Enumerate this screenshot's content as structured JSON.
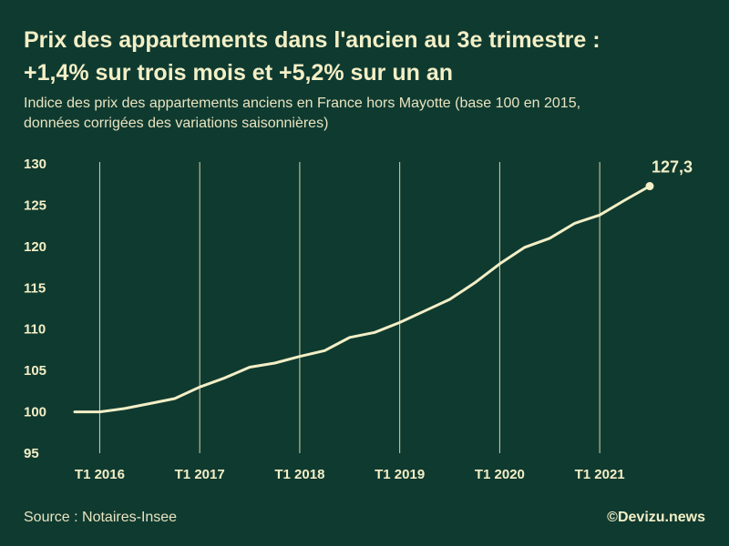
{
  "title_line1": "Prix des appartements dans l'ancien au 3e trimestre :",
  "title_line2": "+1,4% sur trois mois et +5,2% sur un an",
  "subtitle_line1": "Indice des prix des appartements anciens en France hors Mayotte (base 100 en 2015,",
  "subtitle_line2": "données corrigées des variations saisonnières)",
  "source": "Source : Notaires-Insee",
  "credit": "©Devizu.news",
  "colors": {
    "background": "#0f3a30",
    "line": "#f3efc6",
    "grid": "#d9d4ad",
    "text": "#f3efc6"
  },
  "chart_data": {
    "type": "line",
    "title": "Prix des appartements dans l'ancien au 3e trimestre : +1,4% sur trois mois et +5,2% sur un an",
    "xlabel": "",
    "ylabel": "",
    "ylim": [
      95,
      130
    ],
    "yticks": [
      "95",
      "100",
      "105",
      "110",
      "115",
      "120",
      "125",
      "130"
    ],
    "ytick_values": [
      95,
      100,
      105,
      110,
      115,
      120,
      125,
      130
    ],
    "xtick_labels": [
      "T1 2016",
      "T1 2017",
      "T1 2018",
      "T1 2019",
      "T1 2020",
      "T1 2021"
    ],
    "xtick_quarters": [
      "2016-T1",
      "2017-T1",
      "2018-T1",
      "2019-T1",
      "2020-T1",
      "2021-T1"
    ],
    "grid": "vertical",
    "x": [
      "2015-T4",
      "2016-T1",
      "2016-T2",
      "2016-T3",
      "2016-T4",
      "2017-T1",
      "2017-T2",
      "2017-T3",
      "2017-T4",
      "2018-T1",
      "2018-T2",
      "2018-T3",
      "2018-T4",
      "2019-T1",
      "2019-T2",
      "2019-T3",
      "2019-T4",
      "2020-T1",
      "2020-T2",
      "2020-T3",
      "2020-T4",
      "2021-T1",
      "2021-T2",
      "2021-T3"
    ],
    "values": [
      100.0,
      100.0,
      100.4,
      101.0,
      101.6,
      103.0,
      104.1,
      105.4,
      105.9,
      106.7,
      107.4,
      109.0,
      109.6,
      110.8,
      112.2,
      113.6,
      115.6,
      117.9,
      119.9,
      121.0,
      122.8,
      123.8,
      125.6,
      127.3
    ],
    "end_label": "127,3"
  }
}
